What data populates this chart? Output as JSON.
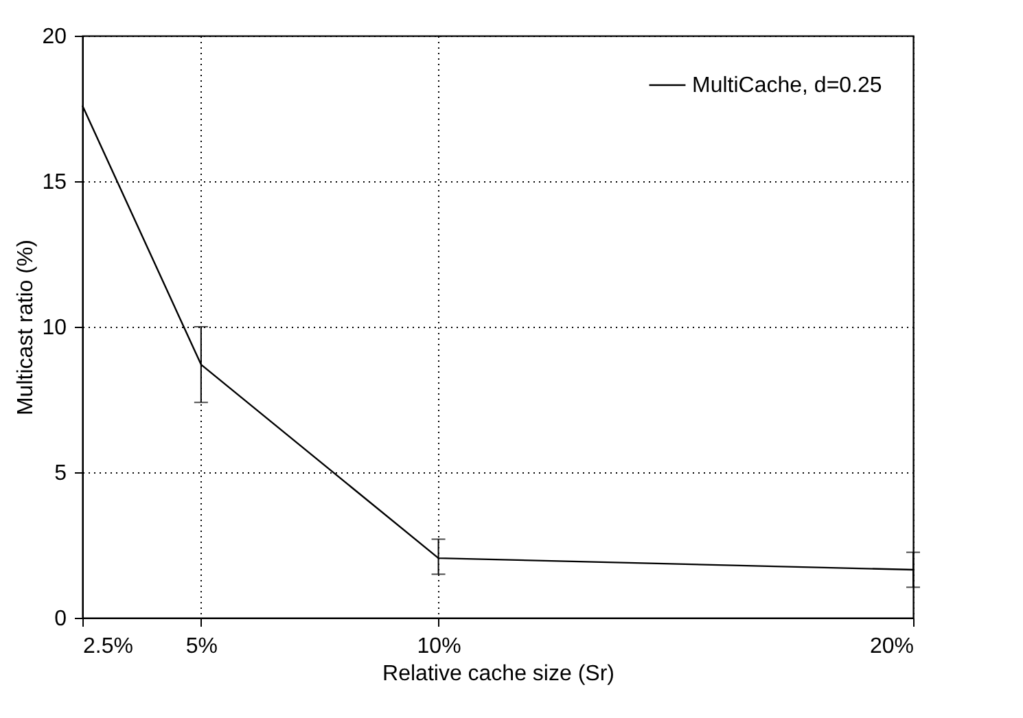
{
  "chart_data": {
    "type": "line",
    "xlabel": "Relative cache size (Sr)",
    "ylabel": "Multicast ratio (%)",
    "x": [
      2.5,
      5,
      10,
      20
    ],
    "series": [
      {
        "name": "MultiCache, d=0.25",
        "color": "#000000",
        "values": [
          17.6,
          8.7,
          2.05,
          1.65
        ],
        "errors": [
          null,
          [
            7.4,
            10.0
          ],
          [
            1.5,
            2.7
          ],
          [
            1.05,
            2.25
          ]
        ]
      }
    ],
    "xlim": [
      2.5,
      20
    ],
    "xticks": [
      {
        "value": 2.5,
        "label": "2.5%"
      },
      {
        "value": 5,
        "label": "5%"
      },
      {
        "value": 10,
        "label": "10%"
      },
      {
        "value": 20,
        "label": "20%"
      }
    ],
    "ylim": [
      0,
      20
    ],
    "yticks": [
      0,
      5,
      10,
      15,
      20
    ],
    "grid": true,
    "legend": "top right",
    "marker": "none",
    "line_style": "solid"
  }
}
